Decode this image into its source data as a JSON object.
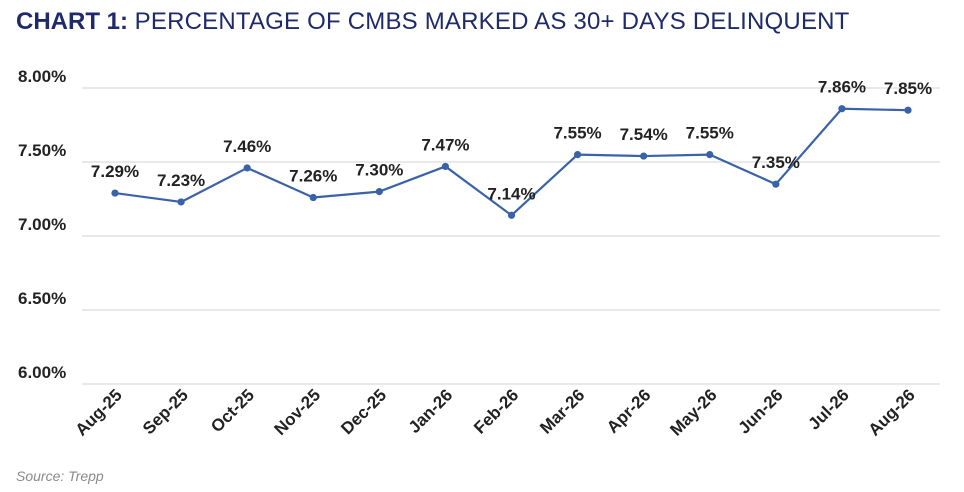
{
  "title": {
    "lead": "CHART 1:",
    "rest": "PERCENTAGE OF CMBS MARKED AS 30+ DAYS DELINQUENT"
  },
  "source": "Source: Trepp",
  "colors": {
    "title": "#1f2a6b",
    "series": "#3a62a8",
    "grid": "#dcdcdc",
    "text": "#222222",
    "source": "#8a8a8a"
  },
  "chart_data": {
    "type": "line",
    "categories": [
      "Aug-25",
      "Sep-25",
      "Oct-25",
      "Nov-25",
      "Dec-25",
      "Jan-26",
      "Feb-26",
      "Mar-26",
      "Apr-26",
      "May-26",
      "Jun-26",
      "Jul-26",
      "Aug-26"
    ],
    "series": [
      {
        "values": [
          7.29,
          7.23,
          7.46,
          7.26,
          7.3,
          7.47,
          7.14,
          7.55,
          7.54,
          7.55,
          7.35,
          7.86,
          7.85
        ],
        "labels": [
          "7.29%",
          "7.23%",
          "7.46%",
          "7.26%",
          "7.30%",
          "7.47%",
          "7.14%",
          "7.55%",
          "7.54%",
          "7.55%",
          "7.35%",
          "7.86%",
          "7.85%"
        ]
      }
    ],
    "yticks": [
      6.0,
      6.5,
      7.0,
      7.5,
      8.0
    ],
    "ytick_labels": [
      "6.00%",
      "6.50%",
      "7.00%",
      "7.50%",
      "8.00%"
    ],
    "ylim": [
      6.0,
      8.0
    ],
    "grid": true,
    "legend": "none",
    "xlabel": "",
    "ylabel": ""
  }
}
